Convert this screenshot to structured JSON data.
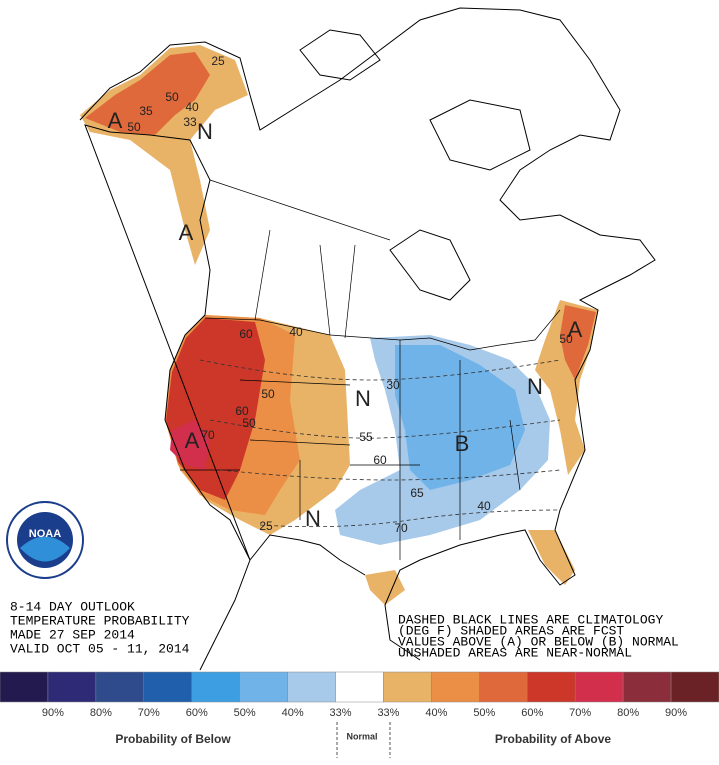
{
  "outlook": {
    "title_lines": [
      "8-14 DAY OUTLOOK",
      "TEMPERATURE PROBABILITY",
      "MADE  27 SEP 2014",
      "VALID  OCT 05 - 11, 2014"
    ],
    "notes": [
      "DASHED BLACK LINES ARE CLIMATOLOGY",
      "(DEG F) SHADED AREAS ARE FCST",
      "VALUES ABOVE (A) OR BELOW (B) NORMAL",
      "UNSHADED AREAS ARE NEAR-NORMAL"
    ],
    "logo_text": "NOAA",
    "map_labels": [
      "25",
      "50",
      "40",
      "35",
      "33",
      "50",
      "A",
      "N",
      "A",
      "60",
      "40",
      "50",
      "60",
      "50",
      "A",
      "70",
      "N",
      "30",
      "55",
      "60",
      "B",
      "65",
      "40",
      "70",
      "25",
      "N",
      "N",
      "A",
      "50"
    ],
    "legend": {
      "colors": [
        "#231a4f",
        "#2e2a76",
        "#2f4b8c",
        "#1f5fab",
        "#3d9fe1",
        "#70b3e9",
        "#a7c9ea",
        "#ffffff",
        "#e9b367",
        "#ea8f45",
        "#e0693b",
        "#cc3729",
        "#d22f4c",
        "#8b2d3a",
        "#6b2226"
      ],
      "labels": [
        "90%",
        "80%",
        "70%",
        "60%",
        "50%",
        "40%",
        "33%",
        "33%",
        "40%",
        "50%",
        "60%",
        "70%",
        "80%",
        "90%"
      ],
      "below_title": "Probability of Below",
      "normal_title": "Normal",
      "above_title": "Probability of Above"
    }
  }
}
